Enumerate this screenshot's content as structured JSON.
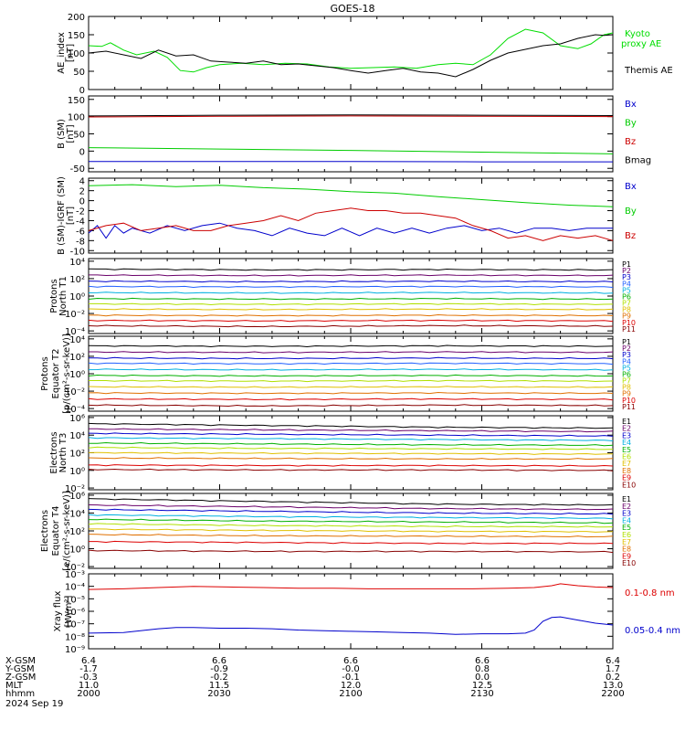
{
  "title": "GOES-18",
  "chart_data": [
    {
      "id": "ae",
      "type": "line",
      "ylabel": [
        "AE_index",
        "[nT]"
      ],
      "ylim": [
        0,
        200
      ],
      "yscale": "linear",
      "y_ticks": [
        0,
        50,
        100,
        150,
        200
      ],
      "legend_placement": "right",
      "series": [
        {
          "name": "Kyoto proxy AE",
          "color": "#00dd00",
          "x": [
            0,
            3,
            5,
            8,
            11,
            15,
            18,
            21,
            24,
            27,
            30,
            35,
            40,
            45,
            50,
            55,
            60,
            65,
            70,
            75,
            80,
            84,
            88,
            92,
            96,
            100,
            104,
            108,
            112,
            115,
            118,
            120
          ],
          "values": [
            120,
            118,
            128,
            108,
            95,
            105,
            88,
            52,
            48,
            60,
            68,
            72,
            68,
            72,
            70,
            62,
            58,
            60,
            62,
            58,
            68,
            72,
            68,
            95,
            140,
            165,
            155,
            120,
            112,
            125,
            150,
            155
          ]
        },
        {
          "name": "Themis AE",
          "color": "#000000",
          "x": [
            0,
            4,
            8,
            12,
            16,
            20,
            24,
            28,
            32,
            36,
            40,
            44,
            48,
            52,
            56,
            60,
            64,
            68,
            72,
            76,
            80,
            84,
            88,
            92,
            96,
            100,
            104,
            108,
            112,
            116,
            118,
            120
          ],
          "values": [
            100,
            105,
            95,
            85,
            108,
            92,
            95,
            78,
            75,
            72,
            78,
            68,
            70,
            65,
            60,
            52,
            45,
            52,
            58,
            48,
            45,
            35,
            55,
            80,
            100,
            110,
            120,
            125,
            140,
            150,
            148,
            150
          ]
        }
      ]
    },
    {
      "id": "bsm",
      "type": "line",
      "ylabel": [
        "B (SM)",
        "[nT]"
      ],
      "ylim": [
        -60,
        160
      ],
      "yscale": "linear",
      "y_ticks": [
        -50,
        0,
        50,
        100,
        150
      ],
      "legend_placement": "right",
      "series": [
        {
          "name": "Bx",
          "color": "#0000cc",
          "x": [
            0,
            30,
            60,
            90,
            120
          ],
          "values": [
            -30,
            -30,
            -30,
            -31,
            -31
          ]
        },
        {
          "name": "By",
          "color": "#00cc00",
          "x": [
            0,
            30,
            60,
            90,
            120
          ],
          "values": [
            10,
            6,
            2,
            -3,
            -8
          ]
        },
        {
          "name": "Bz",
          "color": "#cc0000",
          "x": [
            0,
            30,
            60,
            90,
            120
          ],
          "values": [
            99,
            101,
            102,
            101,
            100
          ]
        },
        {
          "name": "Bmag",
          "color": "#000000",
          "x": [
            0,
            30,
            60,
            90,
            120
          ],
          "values": [
            102,
            104,
            105,
            104,
            103
          ]
        }
      ]
    },
    {
      "id": "bigrf",
      "type": "line",
      "ylabel": [
        "B (SM)-IGRF (SM)",
        "[nT]"
      ],
      "ylim": [
        -10.5,
        4.5
      ],
      "yscale": "linear",
      "y_ticks": [
        -10,
        -8,
        -6,
        -4,
        -2,
        0,
        2,
        4
      ],
      "legend_placement": "right",
      "series": [
        {
          "name": "Bx",
          "color": "#0000cc",
          "x": [
            0,
            2,
            4,
            6,
            8,
            10,
            14,
            18,
            22,
            26,
            30,
            34,
            38,
            42,
            46,
            50,
            54,
            58,
            62,
            66,
            70,
            74,
            78,
            82,
            86,
            90,
            94,
            98,
            102,
            106,
            110,
            114,
            118,
            120
          ],
          "values": [
            -6.5,
            -5,
            -7.5,
            -5,
            -6.5,
            -5.5,
            -6.5,
            -5,
            -6,
            -5,
            -4.5,
            -5.5,
            -6,
            -7,
            -5.5,
            -6.5,
            -7,
            -5.5,
            -7,
            -5.5,
            -6.5,
            -5.5,
            -6.5,
            -5.5,
            -5,
            -6,
            -5.5,
            -6.5,
            -5.5,
            -5.5,
            -6,
            -5.5,
            -5.5,
            -5.5
          ]
        },
        {
          "name": "By",
          "color": "#00cc00",
          "x": [
            0,
            10,
            20,
            30,
            40,
            50,
            60,
            70,
            80,
            90,
            100,
            110,
            120
          ],
          "values": [
            3.0,
            3.2,
            2.8,
            3.1,
            2.6,
            2.3,
            1.8,
            1.5,
            0.8,
            0.2,
            -0.4,
            -0.9,
            -1.2
          ]
        },
        {
          "name": "Bz",
          "color": "#cc0000",
          "x": [
            0,
            4,
            8,
            12,
            16,
            20,
            24,
            28,
            32,
            36,
            40,
            44,
            48,
            52,
            56,
            60,
            64,
            68,
            72,
            76,
            80,
            84,
            88,
            92,
            96,
            100,
            104,
            108,
            112,
            116,
            120
          ],
          "values": [
            -6,
            -5,
            -4.5,
            -6,
            -5.5,
            -5,
            -6,
            -6,
            -5,
            -4.5,
            -4,
            -3,
            -4,
            -2.5,
            -2,
            -1.5,
            -2,
            -2,
            -2.5,
            -2.5,
            -3,
            -3.5,
            -5,
            -6,
            -7.5,
            -7,
            -8,
            -7,
            -7.5,
            -7,
            -8
          ]
        }
      ]
    },
    {
      "id": "protons_t1",
      "type": "line",
      "ylabel": [
        "Protons",
        "North T1"
      ],
      "ylim": [
        -4.3,
        4.3
      ],
      "yscale": "log",
      "y_ticks": [
        -4,
        -2,
        0,
        2,
        4
      ],
      "legend_placement": "right",
      "series": [
        {
          "name": "P1",
          "color": "#000000",
          "levels": [
            3.1,
            3.0,
            3.05,
            3.0
          ]
        },
        {
          "name": "P2",
          "color": "#6a006a",
          "levels": [
            2.4,
            2.35,
            2.4,
            2.35
          ]
        },
        {
          "name": "P3",
          "color": "#0000cc",
          "levels": [
            1.7,
            1.65,
            1.7,
            1.65
          ]
        },
        {
          "name": "P4",
          "color": "#2060ff",
          "levels": [
            1.1,
            1.05,
            1.1,
            1.05
          ]
        },
        {
          "name": "P5",
          "color": "#00b0e0",
          "levels": [
            0.4,
            0.35,
            0.4,
            0.35
          ]
        },
        {
          "name": "P6",
          "color": "#00b000",
          "levels": [
            -0.3,
            -0.35,
            -0.3,
            -0.35
          ]
        },
        {
          "name": "P7",
          "color": "#b0e000",
          "levels": [
            -0.9,
            -0.95,
            -0.9,
            -0.95
          ]
        },
        {
          "name": "P8",
          "color": "#e0c000",
          "levels": [
            -1.5,
            -1.55,
            -1.5,
            -1.55
          ]
        },
        {
          "name": "P9",
          "color": "#e07000",
          "levels": [
            -2.2,
            -2.25,
            -2.2,
            -2.25
          ]
        },
        {
          "name": "P10",
          "color": "#dd0000",
          "levels": [
            -2.8,
            -2.85,
            -2.8,
            -2.85
          ]
        },
        {
          "name": "P11",
          "color": "#880000",
          "levels": [
            -3.4,
            -3.5,
            -3.4,
            -3.45
          ]
        }
      ]
    },
    {
      "id": "protons_t2",
      "type": "line",
      "ylabel": [
        "Protons",
        "Equator T2",
        "[p/(cm²-s-sr-keV)]"
      ],
      "ylim": [
        -4.3,
        4.3
      ],
      "yscale": "log",
      "y_ticks": [
        -4,
        -2,
        0,
        2,
        4
      ],
      "legend_placement": "right",
      "series": [
        {
          "name": "P1",
          "color": "#000000",
          "levels": [
            3.2,
            3.15,
            3.2,
            3.15
          ]
        },
        {
          "name": "P2",
          "color": "#6a006a",
          "levels": [
            2.5,
            2.45,
            2.5,
            2.45
          ]
        },
        {
          "name": "P3",
          "color": "#0000cc",
          "levels": [
            1.8,
            1.75,
            1.8,
            1.75
          ]
        },
        {
          "name": "P4",
          "color": "#2060ff",
          "levels": [
            1.2,
            1.15,
            1.2,
            1.15
          ]
        },
        {
          "name": "P5",
          "color": "#00b0e0",
          "levels": [
            0.5,
            0.45,
            0.5,
            0.45
          ]
        },
        {
          "name": "P6",
          "color": "#00b000",
          "levels": [
            -0.2,
            -0.25,
            -0.2,
            -0.25
          ]
        },
        {
          "name": "P7",
          "color": "#b0e000",
          "levels": [
            -0.8,
            -0.85,
            -0.8,
            -0.85
          ]
        },
        {
          "name": "P8",
          "color": "#e0c000",
          "levels": [
            -1.5,
            -1.55,
            -1.5,
            -1.55
          ]
        },
        {
          "name": "P9",
          "color": "#e07000",
          "levels": [
            -2.2,
            -2.25,
            -2.2,
            -2.25
          ]
        },
        {
          "name": "P10",
          "color": "#dd0000",
          "levels": [
            -2.9,
            -2.95,
            -2.9,
            -2.95
          ]
        },
        {
          "name": "P11",
          "color": "#880000",
          "levels": [
            -3.6,
            -3.7,
            -3.6,
            -3.65
          ]
        }
      ]
    },
    {
      "id": "electrons_t3",
      "type": "line",
      "ylabel": [
        "Electrons",
        "North T3"
      ],
      "ylim": [
        -2.2,
        6.2
      ],
      "yscale": "log",
      "y_ticks": [
        -2,
        0,
        2,
        4,
        6
      ],
      "legend_placement": "right",
      "series": [
        {
          "name": "E1",
          "color": "#000000",
          "levels": [
            5.3,
            5.1,
            4.9,
            4.8
          ]
        },
        {
          "name": "E2",
          "color": "#6a006a",
          "levels": [
            4.7,
            4.6,
            4.5,
            4.4
          ]
        },
        {
          "name": "E3",
          "color": "#0000cc",
          "levels": [
            4.2,
            4.1,
            4.0,
            3.9
          ]
        },
        {
          "name": "E4",
          "color": "#00b0e0",
          "levels": [
            3.7,
            3.6,
            3.5,
            3.4
          ]
        },
        {
          "name": "E5",
          "color": "#00b000",
          "levels": [
            3.1,
            3.0,
            2.9,
            2.85
          ]
        },
        {
          "name": "E6",
          "color": "#b0e000",
          "levels": [
            2.6,
            2.5,
            2.45,
            2.4
          ]
        },
        {
          "name": "E7",
          "color": "#e0c000",
          "levels": [
            2.0,
            1.95,
            1.9,
            1.85
          ]
        },
        {
          "name": "E8",
          "color": "#e07000",
          "levels": [
            1.4,
            1.35,
            1.3,
            1.3
          ]
        },
        {
          "name": "E9",
          "color": "#dd0000",
          "levels": [
            0.6,
            0.55,
            0.55,
            0.5
          ]
        },
        {
          "name": "E10",
          "color": "#880000",
          "levels": [
            0.1,
            0.05,
            0.05,
            0.0
          ]
        }
      ]
    },
    {
      "id": "electrons_t4",
      "type": "line",
      "ylabel": [
        "Electrons",
        "Equator T4",
        "[e/(cm²-s-sr-keV)]"
      ],
      "ylim": [
        -2.2,
        6.2
      ],
      "yscale": "log",
      "y_ticks": [
        -2,
        0,
        2,
        4,
        6
      ],
      "legend_placement": "right",
      "series": [
        {
          "name": "E1",
          "color": "#000000",
          "levels": [
            5.6,
            5.3,
            5.0,
            4.9
          ]
        },
        {
          "name": "E2",
          "color": "#6a006a",
          "levels": [
            4.9,
            4.7,
            4.5,
            4.4
          ]
        },
        {
          "name": "E3",
          "color": "#0000cc",
          "levels": [
            4.4,
            4.2,
            4.0,
            3.9
          ]
        },
        {
          "name": "E4",
          "color": "#00b0e0",
          "levels": [
            3.8,
            3.6,
            3.5,
            3.4
          ]
        },
        {
          "name": "E5",
          "color": "#00b000",
          "levels": [
            3.3,
            3.1,
            3.0,
            2.9
          ]
        },
        {
          "name": "E6",
          "color": "#b0e000",
          "levels": [
            2.8,
            2.6,
            2.5,
            2.45
          ]
        },
        {
          "name": "E7",
          "color": "#e0c000",
          "levels": [
            2.2,
            2.05,
            1.95,
            1.9
          ]
        },
        {
          "name": "E8",
          "color": "#e07000",
          "levels": [
            1.6,
            1.45,
            1.4,
            1.35
          ]
        },
        {
          "name": "E9",
          "color": "#dd0000",
          "levels": [
            0.8,
            0.7,
            0.6,
            0.6
          ]
        },
        {
          "name": "E10",
          "color": "#880000",
          "levels": [
            -0.2,
            -0.3,
            -0.3,
            -0.35
          ]
        }
      ]
    },
    {
      "id": "xray",
      "type": "line",
      "ylabel": [
        "Xray flux",
        "[W/m²]"
      ],
      "ylim": [
        -9,
        -3
      ],
      "yscale": "log",
      "y_ticks": [
        -9,
        -8,
        -7,
        -6,
        -5,
        -4,
        -3
      ],
      "legend_placement": "right",
      "series": [
        {
          "name": "0.1-0.8 nm",
          "color": "#dd0000",
          "x": [
            0,
            8,
            16,
            24,
            32,
            40,
            48,
            56,
            64,
            72,
            80,
            88,
            96,
            102,
            106,
            108,
            112,
            116,
            120
          ],
          "values": [
            -4.25,
            -4.2,
            -4.1,
            -4.0,
            -4.05,
            -4.1,
            -4.15,
            -4.15,
            -4.2,
            -4.2,
            -4.2,
            -4.2,
            -4.15,
            -4.1,
            -3.95,
            -3.8,
            -3.95,
            -4.05,
            -4.1
          ]
        },
        {
          "name": "0.05-0.4 nm",
          "color": "#0000cc",
          "x": [
            0,
            8,
            16,
            20,
            24,
            30,
            36,
            42,
            48,
            54,
            60,
            66,
            72,
            78,
            84,
            90,
            96,
            100,
            102,
            104,
            106,
            108,
            112,
            116,
            120
          ],
          "values": [
            -7.75,
            -7.7,
            -7.4,
            -7.3,
            -7.3,
            -7.35,
            -7.35,
            -7.4,
            -7.5,
            -7.55,
            -7.6,
            -7.65,
            -7.7,
            -7.75,
            -7.85,
            -7.8,
            -7.8,
            -7.75,
            -7.5,
            -6.8,
            -6.5,
            -6.45,
            -6.7,
            -6.95,
            -7.1
          ]
        }
      ]
    }
  ],
  "orbit": {
    "labels": [
      "X-GSM",
      "Y-GSM",
      "Z-GSM",
      "MLT",
      "hhmm",
      "2024 Sep 19"
    ],
    "columns": [
      [
        "6.4",
        "-1.7",
        "-0.3",
        "11.0",
        "2000"
      ],
      [
        "6.6",
        "-0.9",
        "-0.2",
        "11.5",
        "2030"
      ],
      [
        "6.6",
        "-0.0",
        "-0.1",
        "12.0",
        "2100"
      ],
      [
        "6.6",
        "0.8",
        "0.0",
        "12.5",
        "2130"
      ],
      [
        "6.4",
        "1.7",
        "0.2",
        "13.0",
        "2200"
      ]
    ]
  }
}
